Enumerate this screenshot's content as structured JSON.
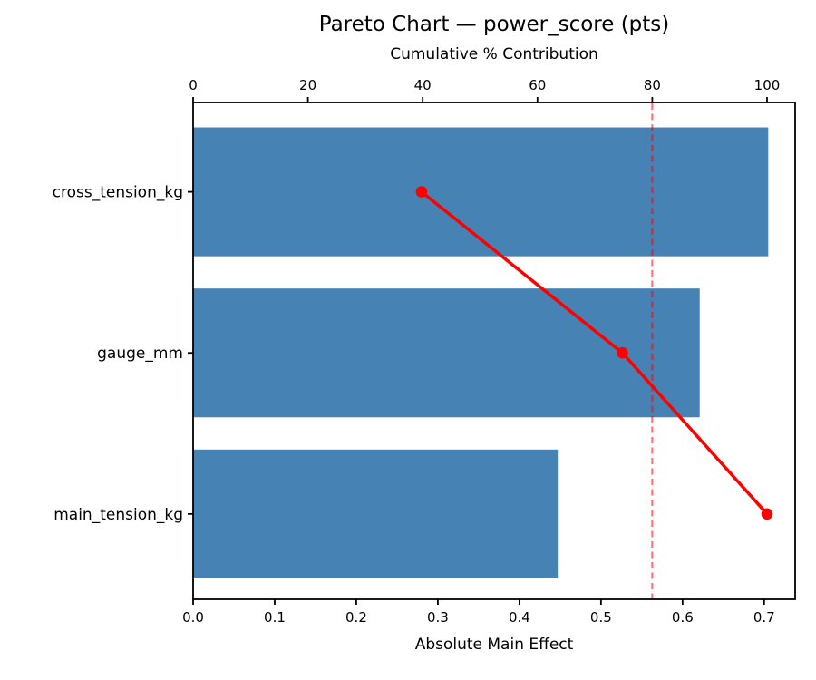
{
  "chart_data": {
    "type": "bar",
    "subtype": "pareto-horizontal",
    "title": "Pareto Chart — power_score (pts)",
    "orientation": "horizontal",
    "grid": false,
    "legend_position": "none",
    "categories": [
      "cross_tension_kg",
      "gauge_mm",
      "main_tension_kg"
    ],
    "series": [
      {
        "name": "Absolute Main Effect",
        "type": "bar",
        "values": [
          0.705,
          0.621,
          0.447
        ]
      },
      {
        "name": "Cumulative % Contribution",
        "type": "line",
        "values": [
          39.8,
          74.8,
          100.0
        ]
      }
    ],
    "threshold_pct": 80,
    "x_axis": {
      "label": "Absolute Main Effect",
      "min": 0,
      "max": 0.738,
      "ticks": [
        "0.0",
        "0.1",
        "0.2",
        "0.3",
        "0.4",
        "0.5",
        "0.6",
        "0.7"
      ],
      "tick_values": [
        0.0,
        0.1,
        0.2,
        0.3,
        0.4,
        0.5,
        0.6,
        0.7
      ]
    },
    "top_axis": {
      "label": "Cumulative % Contribution",
      "min": 0,
      "max": 104.9,
      "ticks": [
        "0",
        "20",
        "40",
        "60",
        "80",
        "100"
      ],
      "tick_values": [
        0,
        20,
        40,
        60,
        80,
        100
      ]
    },
    "colors": {
      "bar": "#4682b4",
      "line": "#ff0000",
      "threshold": "#ff0000",
      "text": "#000000",
      "spine": "#000000",
      "background": "#ffffff"
    }
  }
}
